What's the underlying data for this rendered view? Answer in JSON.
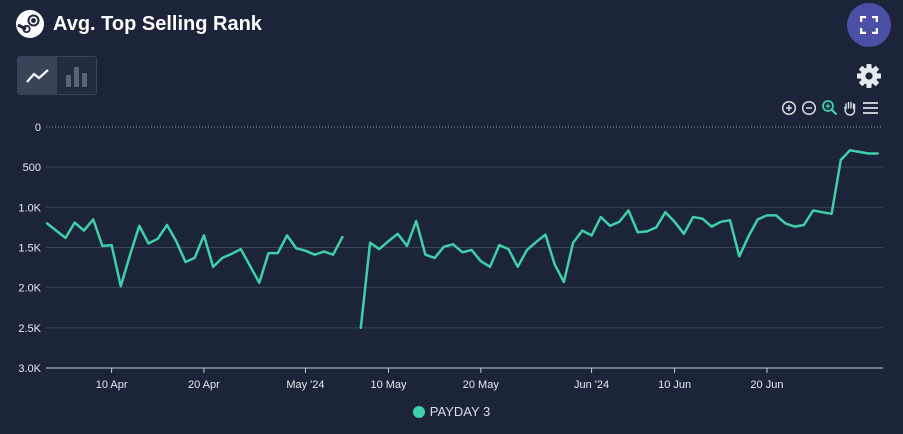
{
  "header": {
    "title": "Avg. Top Selling Rank"
  },
  "toolbar": {
    "view_toggle": [
      "line-chart-icon",
      "bar-chart-icon"
    ],
    "active_view": "line",
    "settings_icon": "gear-icon",
    "expand_icon": "fullscreen-icon",
    "zoom_tools": [
      "zoom-in-icon",
      "zoom-out-icon",
      "zoom-selection-icon",
      "pan-hand-icon",
      "menu-icon"
    ]
  },
  "colors": {
    "background": "#1b2439",
    "series": "#3fcfaa",
    "accent": "#4b4fa6",
    "grid": "#3b4559"
  },
  "chart_data": {
    "type": "line",
    "title": "Avg. Top Selling Rank",
    "x_axis": {
      "range": [
        "2024-04-03",
        "2024-06-30"
      ],
      "tick_labels": [
        {
          "date": "2024-04-10",
          "label": "10 Apr"
        },
        {
          "date": "2024-04-20",
          "label": "20 Apr"
        },
        {
          "date": "2024-05-01",
          "label": "May '24"
        },
        {
          "date": "2024-05-10",
          "label": "10 May"
        },
        {
          "date": "2024-05-20",
          "label": "20 May"
        },
        {
          "date": "2024-06-01",
          "label": "Jun '24"
        },
        {
          "date": "2024-06-10",
          "label": "10 Jun"
        },
        {
          "date": "2024-06-20",
          "label": "20 Jun"
        }
      ]
    },
    "y_axis": {
      "reversed": true,
      "range": [
        0,
        3000
      ],
      "ticks": [
        {
          "value": 0,
          "label": "0"
        },
        {
          "value": 500,
          "label": "500"
        },
        {
          "value": 1000,
          "label": "1.0K"
        },
        {
          "value": 1500,
          "label": "1.5K"
        },
        {
          "value": 2000,
          "label": "2.0K"
        },
        {
          "value": 2500,
          "label": "2.5K"
        },
        {
          "value": 3000,
          "label": "3.0K"
        }
      ]
    },
    "grid": true,
    "legend": "bottom-center",
    "series": [
      {
        "name": "PAYDAY 3",
        "segments": [
          [
            [
              "2024-04-03",
              1200
            ],
            [
              "2024-04-04",
              1290
            ],
            [
              "2024-04-05",
              1380
            ],
            [
              "2024-04-06",
              1190
            ],
            [
              "2024-04-07",
              1290
            ],
            [
              "2024-04-08",
              1150
            ],
            [
              "2024-04-09",
              1480
            ],
            [
              "2024-04-10",
              1470
            ],
            [
              "2024-04-11",
              1980
            ],
            [
              "2024-04-12",
              1590
            ],
            [
              "2024-04-13",
              1230
            ],
            [
              "2024-04-14",
              1450
            ],
            [
              "2024-04-15",
              1390
            ],
            [
              "2024-04-16",
              1220
            ],
            [
              "2024-04-17",
              1420
            ],
            [
              "2024-04-18",
              1680
            ],
            [
              "2024-04-19",
              1630
            ],
            [
              "2024-04-20",
              1350
            ],
            [
              "2024-04-21",
              1740
            ],
            [
              "2024-04-22",
              1630
            ],
            [
              "2024-04-23",
              1580
            ],
            [
              "2024-04-24",
              1520
            ],
            [
              "2024-04-25",
              1730
            ],
            [
              "2024-04-26",
              1940
            ],
            [
              "2024-04-27",
              1570
            ],
            [
              "2024-04-28",
              1570
            ],
            [
              "2024-04-29",
              1350
            ],
            [
              "2024-04-30",
              1510
            ],
            [
              "2024-05-01",
              1540
            ],
            [
              "2024-05-02",
              1590
            ],
            [
              "2024-05-03",
              1550
            ],
            [
              "2024-05-04",
              1590
            ],
            [
              "2024-05-05",
              1370
            ]
          ],
          [
            [
              "2024-05-07",
              2500
            ],
            [
              "2024-05-08",
              1440
            ],
            [
              "2024-05-09",
              1520
            ],
            [
              "2024-05-10",
              1420
            ],
            [
              "2024-05-11",
              1330
            ],
            [
              "2024-05-12",
              1480
            ],
            [
              "2024-05-13",
              1170
            ],
            [
              "2024-05-14",
              1590
            ],
            [
              "2024-05-15",
              1630
            ],
            [
              "2024-05-16",
              1490
            ],
            [
              "2024-05-17",
              1460
            ],
            [
              "2024-05-18",
              1560
            ],
            [
              "2024-05-19",
              1530
            ],
            [
              "2024-05-20",
              1670
            ],
            [
              "2024-05-21",
              1740
            ],
            [
              "2024-05-22",
              1470
            ],
            [
              "2024-05-23",
              1520
            ],
            [
              "2024-05-24",
              1740
            ],
            [
              "2024-05-25",
              1530
            ],
            [
              "2024-05-26",
              1430
            ],
            [
              "2024-05-27",
              1340
            ],
            [
              "2024-05-28",
              1710
            ],
            [
              "2024-05-29",
              1930
            ],
            [
              "2024-05-30",
              1440
            ],
            [
              "2024-05-31",
              1290
            ],
            [
              "2024-06-01",
              1350
            ],
            [
              "2024-06-02",
              1120
            ],
            [
              "2024-06-03",
              1230
            ],
            [
              "2024-06-04",
              1180
            ],
            [
              "2024-06-05",
              1040
            ],
            [
              "2024-06-06",
              1310
            ],
            [
              "2024-06-07",
              1300
            ],
            [
              "2024-06-08",
              1250
            ],
            [
              "2024-06-09",
              1060
            ],
            [
              "2024-06-10",
              1180
            ],
            [
              "2024-06-11",
              1330
            ],
            [
              "2024-06-12",
              1120
            ],
            [
              "2024-06-13",
              1140
            ],
            [
              "2024-06-14",
              1240
            ],
            [
              "2024-06-15",
              1180
            ],
            [
              "2024-06-16",
              1160
            ],
            [
              "2024-06-17",
              1610
            ],
            [
              "2024-06-18",
              1360
            ],
            [
              "2024-06-19",
              1150
            ],
            [
              "2024-06-20",
              1100
            ],
            [
              "2024-06-21",
              1100
            ],
            [
              "2024-06-22",
              1200
            ],
            [
              "2024-06-23",
              1240
            ],
            [
              "2024-06-24",
              1220
            ],
            [
              "2024-06-25",
              1040
            ],
            [
              "2024-06-26",
              1060
            ],
            [
              "2024-06-27",
              1080
            ],
            [
              "2024-06-28",
              410
            ],
            [
              "2024-06-29",
              290
            ],
            [
              "2024-06-30",
              310
            ],
            [
              "2024-07-01",
              330
            ],
            [
              "2024-07-02",
              330
            ]
          ]
        ]
      }
    ]
  }
}
